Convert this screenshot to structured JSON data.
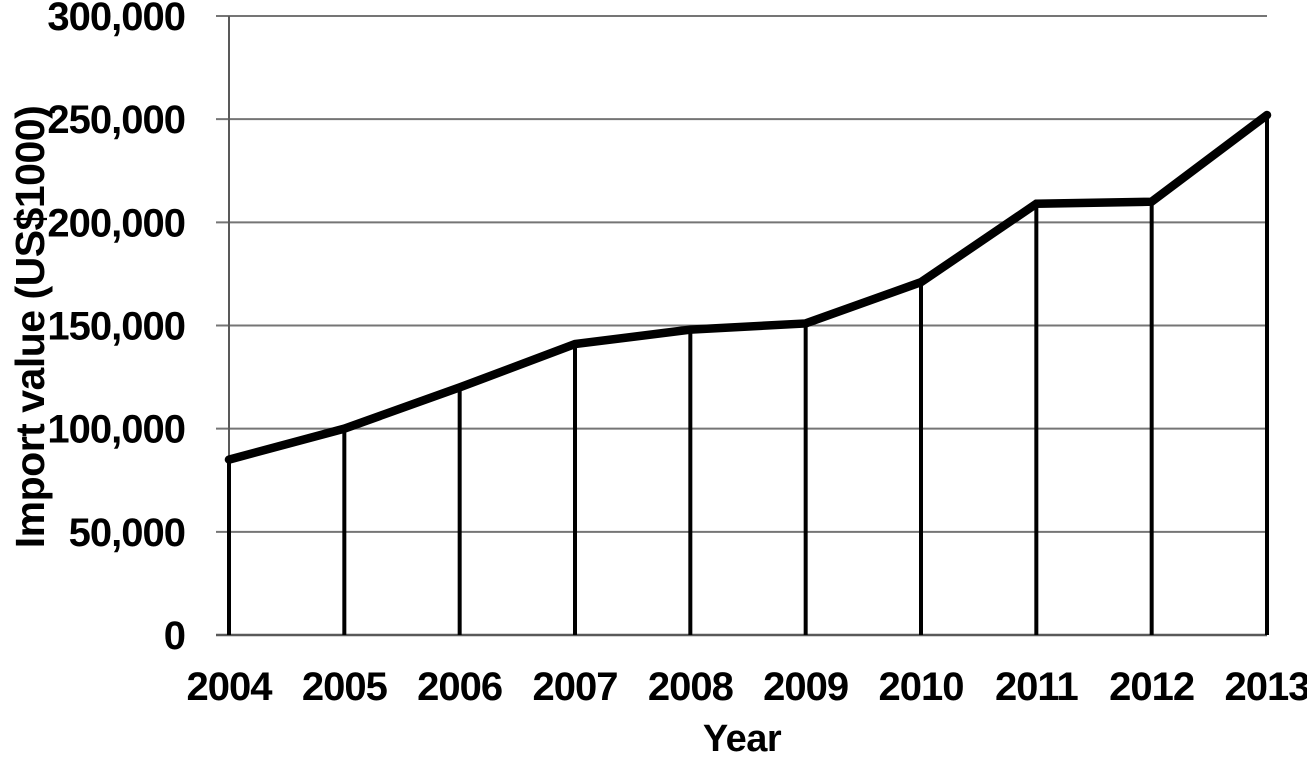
{
  "chart_data": {
    "type": "line",
    "title": "",
    "xlabel": "Year",
    "ylabel": "Import value (US$1000)",
    "x": [
      2004,
      2005,
      2006,
      2007,
      2008,
      2009,
      2010,
      2011,
      2012,
      2013
    ],
    "series": [
      {
        "name": "Import value (US$1000)",
        "values": [
          85000,
          100000,
          120000,
          141000,
          148000,
          151000,
          171000,
          209000,
          210000,
          252000
        ]
      }
    ],
    "ylim": [
      0,
      300000
    ],
    "ytick_step": 50000,
    "ytick_labels": [
      "0",
      "50,000",
      "100,000",
      "150,000",
      "200,000",
      "250,000",
      "300,000"
    ],
    "grid": "horizontal-only",
    "drop_lines_to_x_axis": true,
    "markers": "none",
    "legend_position": "none",
    "colors": {
      "line": "#000000",
      "drop_line": "#000000",
      "gridline": "#757575",
      "axis_line": "#595959",
      "text": "#000000",
      "background": "#ffffff"
    }
  }
}
